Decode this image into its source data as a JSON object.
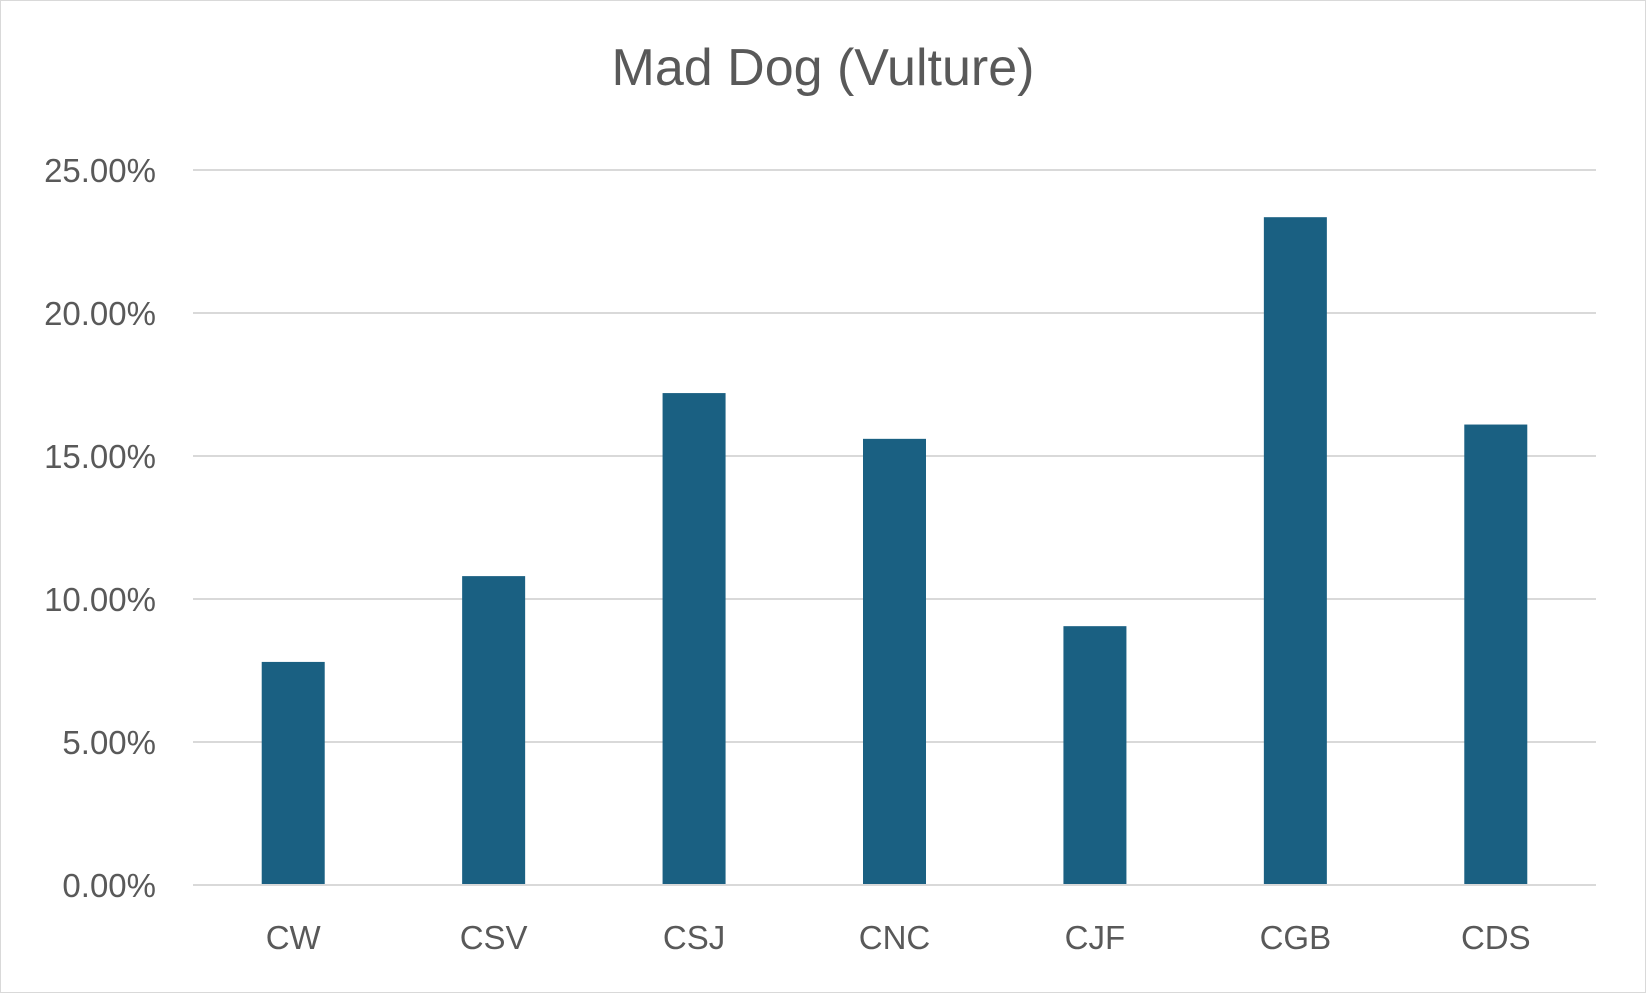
{
  "chart_data": {
    "type": "bar",
    "title": "Mad Dog (Vulture)",
    "categories": [
      "CW",
      "CSV",
      "CSJ",
      "CNC",
      "CJF",
      "CGB",
      "CDS"
    ],
    "values": [
      7.8,
      10.8,
      17.2,
      15.6,
      9.05,
      23.35,
      16.1
    ],
    "value_format": "percent",
    "ylim": [
      0,
      25
    ],
    "yticks": [
      0,
      5,
      10,
      15,
      20,
      25
    ],
    "ytick_labels": [
      "0.00%",
      "5.00%",
      "10.00%",
      "15.00%",
      "20.00%",
      "25.00%"
    ],
    "xlabel": "",
    "ylabel": "",
    "grid": true,
    "legend": "none",
    "colors": {
      "bar": "#1a6082",
      "grid": "#d9d9d9",
      "text": "#595959"
    }
  }
}
